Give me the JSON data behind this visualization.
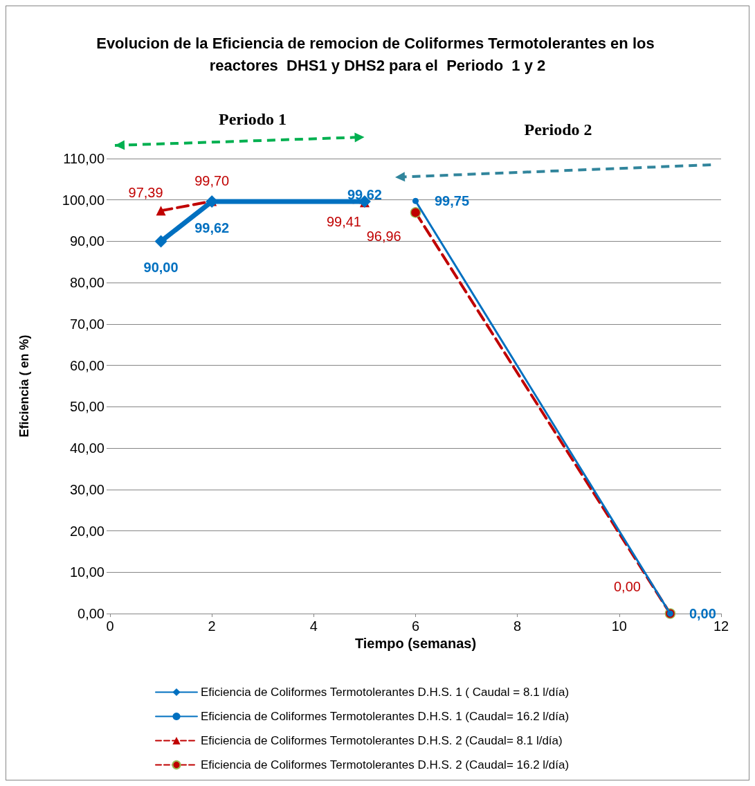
{
  "chart_data": {
    "type": "line",
    "title": "Evolucion de la Eficiencia de remocion de Coliformes Termotolerantes en los reactores  DHS1 y DHS2 para el  Periodo  1 y 2",
    "xlabel": "Tiempo (semanas)",
    "ylabel": "Eficiencia ( en %)",
    "annotations": [
      "Periodo 1",
      "Periodo 2"
    ],
    "xlim": [
      0,
      12
    ],
    "xticks": [
      0,
      2,
      4,
      6,
      8,
      10,
      12
    ],
    "ylim": [
      0,
      110
    ],
    "yticks": [
      {
        "value": 0,
        "label": "0,00"
      },
      {
        "value": 10,
        "label": "10,00"
      },
      {
        "value": 20,
        "label": "20,00"
      },
      {
        "value": 30,
        "label": "30,00"
      },
      {
        "value": 40,
        "label": "40,00"
      },
      {
        "value": 50,
        "label": "50,00"
      },
      {
        "value": 60,
        "label": "60,00"
      },
      {
        "value": 70,
        "label": "70,00"
      },
      {
        "value": 80,
        "label": "80,00"
      },
      {
        "value": 90,
        "label": "90,00"
      },
      {
        "value": 100,
        "label": "100,00"
      },
      {
        "value": 110,
        "label": "110,00"
      }
    ],
    "grid": "y",
    "legend": "bottom",
    "series": [
      {
        "name": "Eficiencia de Coliformes Termotolerantes D.H.S. 1 ( Caudal = 8.1 l/día)",
        "color": "#0070c0",
        "x": [
          1,
          2,
          5
        ],
        "values": [
          90.0,
          99.62,
          99.62
        ],
        "value_labels": [
          "90,00",
          "99,62",
          "99,62"
        ],
        "marker": "diamond",
        "line_style": "solid"
      },
      {
        "name": "Eficiencia de Coliformes Termotolerantes D.H.S. 1 (Caudal= 16.2 l/día)",
        "color": "#0070c0",
        "x": [
          6,
          11
        ],
        "values": [
          99.75,
          0.0
        ],
        "value_labels": [
          "99,75",
          "0,00"
        ],
        "marker": "circle",
        "line_style": "solid"
      },
      {
        "name": "Eficiencia de Coliformes Termotolerantes D.H.S. 2 (Caudal= 8.1 l/día)",
        "color": "#c00000",
        "x": [
          1,
          2,
          5
        ],
        "values": [
          97.39,
          99.7,
          99.41
        ],
        "value_labels": [
          "97,39",
          "99,70",
          "99,41"
        ],
        "marker": "triangle",
        "line_style": "dashed"
      },
      {
        "name": "Eficiencia de Coliformes Termotolerantes D.H.S. 2 (Caudal= 16.2 l/día)",
        "color": "#c00000",
        "x": [
          6,
          11
        ],
        "values": [
          96.96,
          0.0
        ],
        "value_labels": [
          "96,96",
          "0,00"
        ],
        "marker": "circle",
        "line_style": "dashed"
      }
    ]
  }
}
